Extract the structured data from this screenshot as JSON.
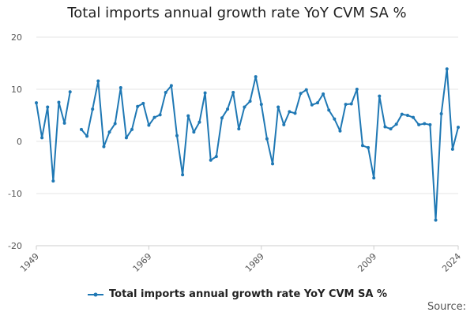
{
  "chart_data": {
    "type": "line",
    "title": "Total imports annual growth rate YoY CVM SA %",
    "xlabel": "",
    "ylabel": "",
    "xlim": [
      1949,
      2024
    ],
    "ylim": [
      -20,
      20
    ],
    "y_ticks": [
      20,
      10,
      0,
      -10,
      -20
    ],
    "x_ticks": [
      1949,
      1969,
      1989,
      2009,
      2024
    ],
    "grid": "horizontal",
    "legend_position": "bottom",
    "series": [
      {
        "name": "Total imports annual growth rate YoY CVM SA %",
        "color": "#1f78b4",
        "x": [
          1949,
          1950,
          1951,
          1952,
          1953,
          1954,
          1955,
          1956,
          1957,
          1958,
          1959,
          1960,
          1961,
          1962,
          1963,
          1964,
          1965,
          1966,
          1967,
          1968,
          1969,
          1970,
          1971,
          1972,
          1973,
          1974,
          1975,
          1976,
          1977,
          1978,
          1979,
          1980,
          1981,
          1982,
          1983,
          1984,
          1985,
          1986,
          1987,
          1988,
          1989,
          1990,
          1991,
          1992,
          1993,
          1994,
          1995,
          1996,
          1997,
          1998,
          1999,
          2000,
          2001,
          2002,
          2003,
          2004,
          2005,
          2006,
          2007,
          2008,
          2009,
          2010,
          2011,
          2012,
          2013,
          2014,
          2015,
          2016,
          2017,
          2018,
          2019,
          2020,
          2021,
          2022,
          2023,
          2024
        ],
        "values": [
          7.4,
          0.7,
          6.6,
          -7.6,
          7.5,
          3.5,
          9.5,
          null,
          2.3,
          1.0,
          6.2,
          11.6,
          -1.0,
          1.8,
          3.4,
          10.3,
          0.7,
          2.3,
          6.7,
          7.3,
          3.1,
          4.6,
          5.1,
          9.4,
          10.7,
          1.1,
          -6.4,
          4.9,
          1.8,
          3.7,
          9.3,
          -3.6,
          -2.9,
          4.5,
          6.2,
          9.4,
          2.4,
          6.6,
          7.7,
          12.4,
          7.1,
          0.5,
          -4.3,
          6.6,
          3.2,
          5.7,
          5.4,
          9.2,
          9.9,
          7.0,
          7.4,
          9.1,
          6.0,
          4.3,
          2.0,
          7.1,
          7.2,
          10.0,
          -0.8,
          -1.2,
          -7.0,
          8.7,
          2.8,
          2.4,
          3.3,
          5.2,
          5.0,
          4.6,
          3.2,
          3.4,
          3.2,
          -15.1,
          5.3,
          13.9,
          -1.5,
          2.7
        ]
      }
    ]
  },
  "source_label": "Source:"
}
